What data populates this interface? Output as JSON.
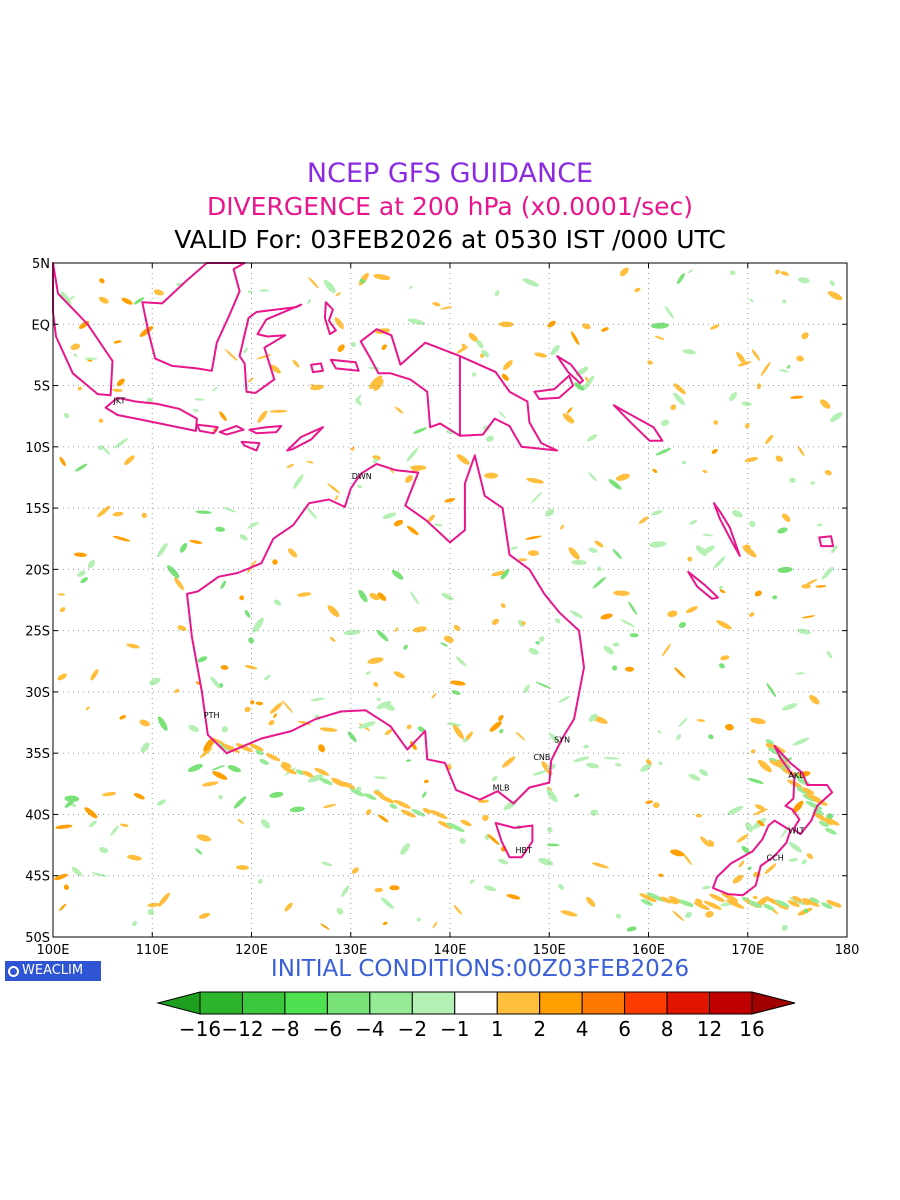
{
  "header": {
    "title": "NCEP GFS GUIDANCE",
    "subtitle": "DIVERGENCE at 200 hPa (x0.0001/sec)",
    "valid": "VALID For: 03FEB2026 at 0530 IST /000 UTC"
  },
  "footer": {
    "logo": "WEACLIM",
    "initial_conditions": "INITIAL CONDITIONS:00Z03FEB2026"
  },
  "map": {
    "lon_range": [
      100,
      180
    ],
    "lat_range": [
      -50,
      5
    ],
    "lon_ticks": [
      {
        "v": 100,
        "label": "100E"
      },
      {
        "v": 110,
        "label": "110E"
      },
      {
        "v": 120,
        "label": "120E"
      },
      {
        "v": 130,
        "label": "130E"
      },
      {
        "v": 140,
        "label": "140E"
      },
      {
        "v": 150,
        "label": "150E"
      },
      {
        "v": 160,
        "label": "160E"
      },
      {
        "v": 170,
        "label": "170E"
      },
      {
        "v": 180,
        "label": "180"
      }
    ],
    "lat_ticks": [
      {
        "v": 5,
        "label": "5N"
      },
      {
        "v": 0,
        "label": "EQ"
      },
      {
        "v": -5,
        "label": "5S"
      },
      {
        "v": -10,
        "label": "10S"
      },
      {
        "v": -15,
        "label": "15S"
      },
      {
        "v": -20,
        "label": "20S"
      },
      {
        "v": -25,
        "label": "25S"
      },
      {
        "v": -30,
        "label": "30S"
      },
      {
        "v": -35,
        "label": "35S"
      },
      {
        "v": -40,
        "label": "40S"
      },
      {
        "v": -45,
        "label": "45S"
      },
      {
        "v": -50,
        "label": "50S"
      }
    ],
    "grid": true,
    "coast_color": "#e8168c",
    "cities": [
      {
        "name": "JKT",
        "lon": 106.8,
        "lat": -6.2
      },
      {
        "name": "DWN",
        "lon": 130.8,
        "lat": -12.4
      },
      {
        "name": "PTH",
        "lon": 115.9,
        "lat": -31.9
      },
      {
        "name": "SYN",
        "lon": 151.2,
        "lat": -33.9
      },
      {
        "name": "CNB",
        "lon": 149.1,
        "lat": -35.3
      },
      {
        "name": "MLB",
        "lon": 145.0,
        "lat": -37.8
      },
      {
        "name": "HBT",
        "lon": 147.3,
        "lat": -42.9
      },
      {
        "name": "AKL",
        "lon": 174.8,
        "lat": -36.8
      },
      {
        "name": "WLT",
        "lon": 174.8,
        "lat": -41.3
      },
      {
        "name": "CCH",
        "lon": 172.6,
        "lat": -43.5
      }
    ]
  },
  "colorbar": {
    "levels": [
      "−16",
      "−12",
      "−8",
      "−6",
      "−4",
      "−2",
      "−1",
      "1",
      "2",
      "4",
      "6",
      "8",
      "12",
      "16"
    ],
    "colors": [
      "#1e9e1e",
      "#2db42d",
      "#3cc83c",
      "#50e150",
      "#78e178",
      "#96eb96",
      "#b4f0b4",
      "#ffffff",
      "#ffbe3c",
      "#ffa000",
      "#ff7800",
      "#ff3c00",
      "#e11400",
      "#c00000",
      "#a00000"
    ]
  }
}
